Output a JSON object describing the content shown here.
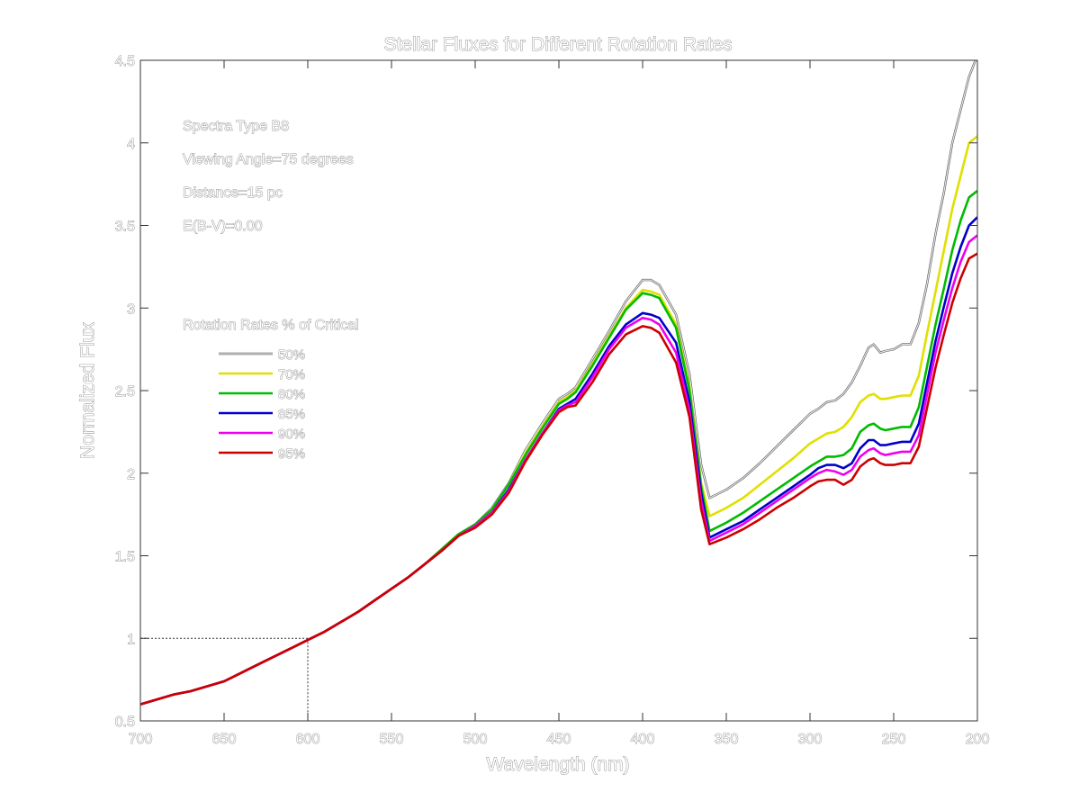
{
  "chart_data": {
    "type": "line",
    "title": "Stellar Fluxes for Different Rotation Rates",
    "xlabel": "Wavelength (nm)",
    "ylabel": "Normalized Flux",
    "xlim": [
      700,
      200
    ],
    "ylim": [
      0.5,
      4.5
    ],
    "x_reversed": true,
    "xticks": [
      700,
      650,
      600,
      550,
      500,
      450,
      400,
      350,
      300,
      250,
      200
    ],
    "xtick_labels": [
      "700",
      "650",
      "600",
      "550",
      "500",
      "450",
      "400",
      "350",
      "300",
      "250",
      "200"
    ],
    "yticks": [
      0.5,
      1,
      1.5,
      2,
      2.5,
      3,
      3.5,
      4,
      4.5
    ],
    "ytick_labels": [
      "0.5",
      "1",
      "1.5",
      "2",
      "2.5",
      "3",
      "3.5",
      "4",
      "4.5"
    ],
    "grid": false,
    "annotations": [
      "Spectra Type B8",
      "Viewing Angle=75 degrees",
      "Distance=15 pc",
      "E(B-V)=0.00"
    ],
    "legend_title": "Rotation Rates % of Critical",
    "legend_position": "upper-left",
    "reference_point": {
      "x": 600,
      "y": 1.0,
      "style": "dotted"
    },
    "x": [
      700,
      690,
      680,
      670,
      660,
      650,
      640,
      630,
      620,
      610,
      600,
      590,
      580,
      570,
      560,
      550,
      540,
      530,
      520,
      510,
      500,
      490,
      480,
      470,
      460,
      450,
      445,
      440,
      430,
      420,
      410,
      400,
      395,
      390,
      380,
      372,
      365,
      360,
      350,
      340,
      330,
      320,
      310,
      300,
      295,
      290,
      285,
      280,
      275,
      270,
      265,
      262,
      258,
      255,
      250,
      245,
      240,
      235,
      230,
      225,
      220,
      215,
      210,
      205,
      200
    ],
    "series": [
      {
        "name": "50%",
        "color": "#e8e8e8",
        "values": [
          0.6,
          0.63,
          0.66,
          0.68,
          0.71,
          0.74,
          0.79,
          0.84,
          0.89,
          0.94,
          0.99,
          1.04,
          1.1,
          1.16,
          1.23,
          1.3,
          1.37,
          1.45,
          1.54,
          1.63,
          1.69,
          1.79,
          1.94,
          2.14,
          2.3,
          2.45,
          2.48,
          2.52,
          2.69,
          2.86,
          3.04,
          3.17,
          3.17,
          3.14,
          2.96,
          2.6,
          2.05,
          1.85,
          1.9,
          1.97,
          2.06,
          2.16,
          2.26,
          2.36,
          2.39,
          2.43,
          2.44,
          2.48,
          2.55,
          2.65,
          2.76,
          2.78,
          2.73,
          2.74,
          2.75,
          2.78,
          2.78,
          2.91,
          3.15,
          3.45,
          3.7,
          4.0,
          4.2,
          4.4,
          4.53
        ]
      },
      {
        "name": "70%",
        "color": "#e0e000",
        "values": [
          0.6,
          0.63,
          0.66,
          0.68,
          0.71,
          0.74,
          0.79,
          0.84,
          0.89,
          0.94,
          0.99,
          1.04,
          1.1,
          1.16,
          1.23,
          1.3,
          1.37,
          1.45,
          1.54,
          1.63,
          1.69,
          1.78,
          1.93,
          2.12,
          2.28,
          2.43,
          2.46,
          2.5,
          2.66,
          2.83,
          3.0,
          3.11,
          3.1,
          3.08,
          2.9,
          2.52,
          1.94,
          1.74,
          1.79,
          1.85,
          1.93,
          2.01,
          2.09,
          2.18,
          2.21,
          2.24,
          2.25,
          2.28,
          2.34,
          2.43,
          2.47,
          2.48,
          2.45,
          2.45,
          2.46,
          2.47,
          2.47,
          2.59,
          2.85,
          3.1,
          3.35,
          3.6,
          3.8,
          4.0,
          4.04
        ]
      },
      {
        "name": "80%",
        "color": "#00bb00",
        "values": [
          0.6,
          0.63,
          0.66,
          0.68,
          0.71,
          0.74,
          0.79,
          0.84,
          0.89,
          0.94,
          0.99,
          1.04,
          1.1,
          1.16,
          1.23,
          1.3,
          1.37,
          1.45,
          1.54,
          1.63,
          1.69,
          1.78,
          1.93,
          2.11,
          2.27,
          2.42,
          2.45,
          2.49,
          2.65,
          2.82,
          2.99,
          3.09,
          3.08,
          3.06,
          2.88,
          2.5,
          1.92,
          1.65,
          1.7,
          1.76,
          1.83,
          1.9,
          1.97,
          2.04,
          2.07,
          2.1,
          2.1,
          2.11,
          2.15,
          2.25,
          2.29,
          2.3,
          2.27,
          2.26,
          2.27,
          2.28,
          2.28,
          2.4,
          2.65,
          2.9,
          3.12,
          3.35,
          3.53,
          3.67,
          3.71
        ]
      },
      {
        "name": "85%",
        "color": "#0000cc",
        "values": [
          0.6,
          0.63,
          0.66,
          0.68,
          0.71,
          0.74,
          0.79,
          0.84,
          0.89,
          0.94,
          0.99,
          1.04,
          1.1,
          1.16,
          1.23,
          1.3,
          1.37,
          1.45,
          1.53,
          1.62,
          1.68,
          1.76,
          1.9,
          2.08,
          2.24,
          2.39,
          2.42,
          2.45,
          2.6,
          2.77,
          2.9,
          2.97,
          2.96,
          2.94,
          2.79,
          2.43,
          1.88,
          1.61,
          1.66,
          1.71,
          1.78,
          1.85,
          1.92,
          1.99,
          2.03,
          2.05,
          2.05,
          2.03,
          2.06,
          2.15,
          2.2,
          2.2,
          2.17,
          2.17,
          2.18,
          2.19,
          2.19,
          2.3,
          2.55,
          2.8,
          3.01,
          3.21,
          3.37,
          3.5,
          3.55
        ]
      },
      {
        "name": "90%",
        "color": "#ee00ee",
        "values": [
          0.6,
          0.63,
          0.66,
          0.68,
          0.71,
          0.74,
          0.79,
          0.84,
          0.89,
          0.94,
          0.99,
          1.04,
          1.1,
          1.16,
          1.23,
          1.3,
          1.37,
          1.45,
          1.53,
          1.62,
          1.68,
          1.76,
          1.89,
          2.08,
          2.24,
          2.38,
          2.41,
          2.43,
          2.58,
          2.75,
          2.88,
          2.94,
          2.93,
          2.9,
          2.73,
          2.38,
          1.83,
          1.59,
          1.64,
          1.69,
          1.76,
          1.83,
          1.9,
          1.97,
          2.0,
          2.02,
          2.01,
          1.99,
          2.02,
          2.1,
          2.14,
          2.15,
          2.12,
          2.11,
          2.12,
          2.13,
          2.13,
          2.23,
          2.48,
          2.73,
          2.93,
          3.12,
          3.28,
          3.4,
          3.44
        ]
      },
      {
        "name": "95%",
        "color": "#cc0000",
        "values": [
          0.6,
          0.63,
          0.66,
          0.68,
          0.71,
          0.74,
          0.79,
          0.84,
          0.89,
          0.94,
          0.99,
          1.04,
          1.1,
          1.16,
          1.23,
          1.3,
          1.37,
          1.45,
          1.53,
          1.62,
          1.67,
          1.75,
          1.88,
          2.07,
          2.23,
          2.37,
          2.4,
          2.41,
          2.55,
          2.72,
          2.84,
          2.89,
          2.88,
          2.85,
          2.67,
          2.34,
          1.78,
          1.57,
          1.61,
          1.66,
          1.72,
          1.79,
          1.85,
          1.92,
          1.95,
          1.96,
          1.96,
          1.93,
          1.96,
          2.04,
          2.08,
          2.09,
          2.06,
          2.05,
          2.05,
          2.06,
          2.06,
          2.16,
          2.4,
          2.64,
          2.84,
          3.03,
          3.18,
          3.3,
          3.33
        ]
      }
    ]
  }
}
